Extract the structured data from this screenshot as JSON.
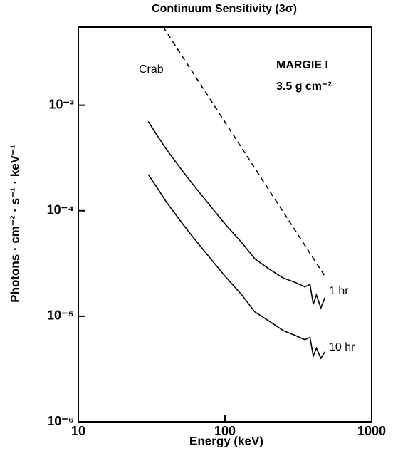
{
  "chart_data": {
    "type": "line",
    "title": "Continuum Sensitivity (3σ)",
    "x_label": "Energy (keV)",
    "y_label": "Photons · cm⁻² · s⁻¹ · keV⁻¹",
    "annotations": [
      "MARGIE I",
      "3.5 g cm⁻²"
    ],
    "log_x": true,
    "log_y": true,
    "xlim": [
      10,
      1000
    ],
    "ylim": [
      1e-06,
      0.0055
    ],
    "xticks": [
      10,
      100,
      1000
    ],
    "yticks": [
      {
        "value": 1e-06,
        "label": "10⁻⁶"
      },
      {
        "value": 1e-05,
        "label": "10⁻⁵"
      },
      {
        "value": 0.0001,
        "label": "10⁻⁴"
      },
      {
        "value": 0.001,
        "label": "10⁻³"
      }
    ],
    "series": [
      {
        "name": "Crab",
        "color": "#000000",
        "line_style": "dashed",
        "x": [
          38,
          480
        ],
        "values": [
          0.0055,
          2.4e-05
        ]
      },
      {
        "name": "1 hr",
        "color": "#000000",
        "line_style": "solid",
        "x": [
          30,
          35,
          40,
          50,
          60,
          80,
          100,
          130,
          160,
          200,
          250,
          300,
          350,
          380,
          400,
          420,
          450,
          480
        ],
        "values": [
          0.0007,
          0.0005,
          0.00038,
          0.00025,
          0.00018,
          0.00011,
          7.5e-05,
          5e-05,
          3.5e-05,
          2.8e-05,
          2.3e-05,
          2.1e-05,
          1.9e-05,
          2e-05,
          1.3e-05,
          1.6e-05,
          1.2e-05,
          1.5e-05
        ]
      },
      {
        "name": "10 hr",
        "color": "#000000",
        "line_style": "solid",
        "x": [
          30,
          35,
          40,
          50,
          60,
          80,
          100,
          130,
          160,
          200,
          250,
          300,
          350,
          380,
          400,
          420,
          450,
          480
        ],
        "values": [
          0.00022,
          0.00016,
          0.00012,
          7.9e-05,
          5.7e-05,
          3.5e-05,
          2.4e-05,
          1.6e-05,
          1.1e-05,
          9e-06,
          7.3e-06,
          6.6e-06,
          6e-06,
          6.3e-06,
          4.2e-06,
          5e-06,
          4e-06,
          4.6e-06
        ]
      }
    ]
  }
}
